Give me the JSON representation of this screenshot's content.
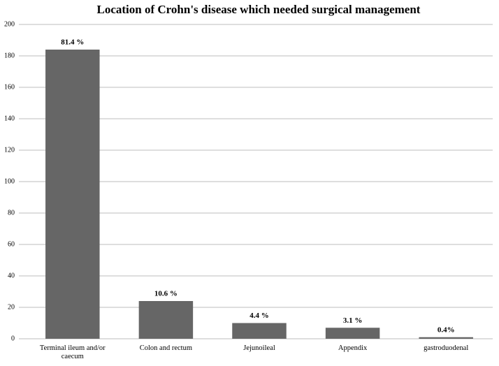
{
  "chart_data": {
    "type": "bar",
    "title": "Location of Crohn's disease which needed surgical management",
    "categories": [
      "Terminal ileum and/or caecum",
      "Colon and rectum",
      "Jejunoileal",
      "Appendix",
      "gastroduodenal"
    ],
    "values": [
      184,
      24,
      10,
      7,
      1
    ],
    "bar_labels": [
      "81.4 %",
      "10.6 %",
      "4.4 %",
      "3.1 %",
      "0.4%"
    ],
    "color": "#666666",
    "ylim": [
      0,
      200
    ],
    "yticks": [
      0,
      20,
      40,
      60,
      80,
      100,
      120,
      140,
      160,
      180,
      200
    ],
    "grid": true
  }
}
